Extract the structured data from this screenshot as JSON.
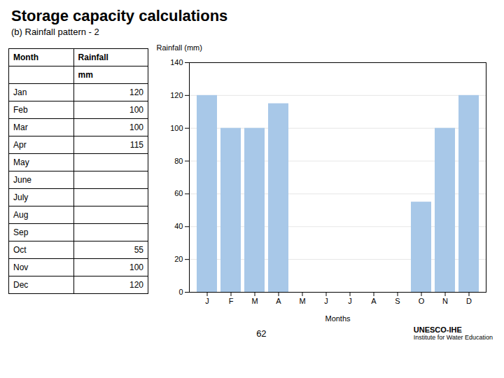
{
  "chart_data": {
    "type": "bar",
    "title": "Storage capacity calculations",
    "subtitle": "(b) Rainfall pattern - 2",
    "categories": [
      "J",
      "F",
      "M",
      "A",
      "M",
      "J",
      "J",
      "A",
      "S",
      "O",
      "N",
      "D"
    ],
    "values": [
      120,
      100,
      100,
      115,
      0,
      0,
      0,
      0,
      0,
      55,
      100,
      120
    ],
    "color": "#a8c8e8",
    "xlabel": "Months",
    "ylabel": "Rainfall (mm)",
    "ylim": [
      0,
      140
    ],
    "yticks": [
      0,
      20,
      40,
      60,
      80,
      100,
      120,
      140
    ],
    "grid": true,
    "table": {
      "columns": [
        "Month",
        "Rainfall"
      ],
      "unit": "mm",
      "categories": [
        "Jan",
        "Feb",
        "Mar",
        "Apr",
        "May",
        "June",
        "July",
        "Aug",
        "Sep",
        "Oct",
        "Nov",
        "Dec"
      ],
      "values": [
        120,
        100,
        100,
        115,
        null,
        null,
        null,
        null,
        null,
        55,
        100,
        120
      ]
    },
    "annotations": [
      "62",
      "UNESCO-IHE",
      "Institute for Water Education"
    ]
  }
}
